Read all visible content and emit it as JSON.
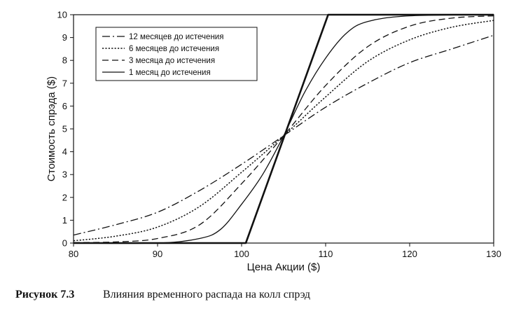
{
  "chart_data": {
    "type": "line",
    "xlabel": "Цена Акции ($)",
    "ylabel": "Стоимость спрэда ($)",
    "xlim": [
      80,
      130
    ],
    "ylim": [
      0,
      10
    ],
    "xticks": [
      80,
      90,
      100,
      110,
      120,
      130
    ],
    "yticks": [
      0,
      1,
      2,
      3,
      4,
      5,
      6,
      7,
      8,
      9,
      10
    ],
    "grid": false,
    "legend_position": "top-left",
    "series": [
      {
        "name": "12 месяцев до истечения",
        "style": "dashdot",
        "x": [
          80,
          85,
          90,
          95,
          100,
          105,
          110,
          115,
          120,
          125,
          130
        ],
        "y": [
          0.35,
          0.8,
          1.35,
          2.3,
          3.45,
          4.7,
          5.95,
          7.0,
          7.9,
          8.5,
          9.1
        ]
      },
      {
        "name": "6 месяцев до истечения",
        "style": "dotted",
        "x": [
          80,
          85,
          90,
          95,
          100,
          105,
          110,
          115,
          120,
          125,
          130
        ],
        "y": [
          0.1,
          0.3,
          0.7,
          1.6,
          3.1,
          4.7,
          6.4,
          7.95,
          8.9,
          9.45,
          9.75
        ]
      },
      {
        "name": "3 месяца до истечения",
        "style": "dashed",
        "x": [
          80,
          85,
          90,
          95,
          100,
          105,
          110,
          115,
          120,
          125,
          130
        ],
        "y": [
          0.02,
          0.05,
          0.2,
          0.8,
          2.6,
          4.7,
          6.9,
          8.6,
          9.5,
          9.85,
          9.95
        ]
      },
      {
        "name": "1 месяц до истечения",
        "style": "solid",
        "x": [
          80,
          90,
          95,
          97.5,
          100,
          102.5,
          105,
          107.5,
          110,
          112.5,
          115,
          120,
          130
        ],
        "y": [
          0,
          0,
          0.2,
          0.6,
          1.7,
          3.0,
          4.7,
          6.6,
          8.1,
          9.2,
          9.7,
          9.95,
          10
        ]
      },
      {
        "name": "",
        "style": "solid-bold",
        "x": [
          80,
          100.5,
          110.3,
          130
        ],
        "y": [
          0,
          0,
          10,
          10
        ]
      }
    ]
  },
  "caption": {
    "figure_number": "Рисунок 7.3",
    "text": "Влияния временного распада на колл спрэд"
  }
}
